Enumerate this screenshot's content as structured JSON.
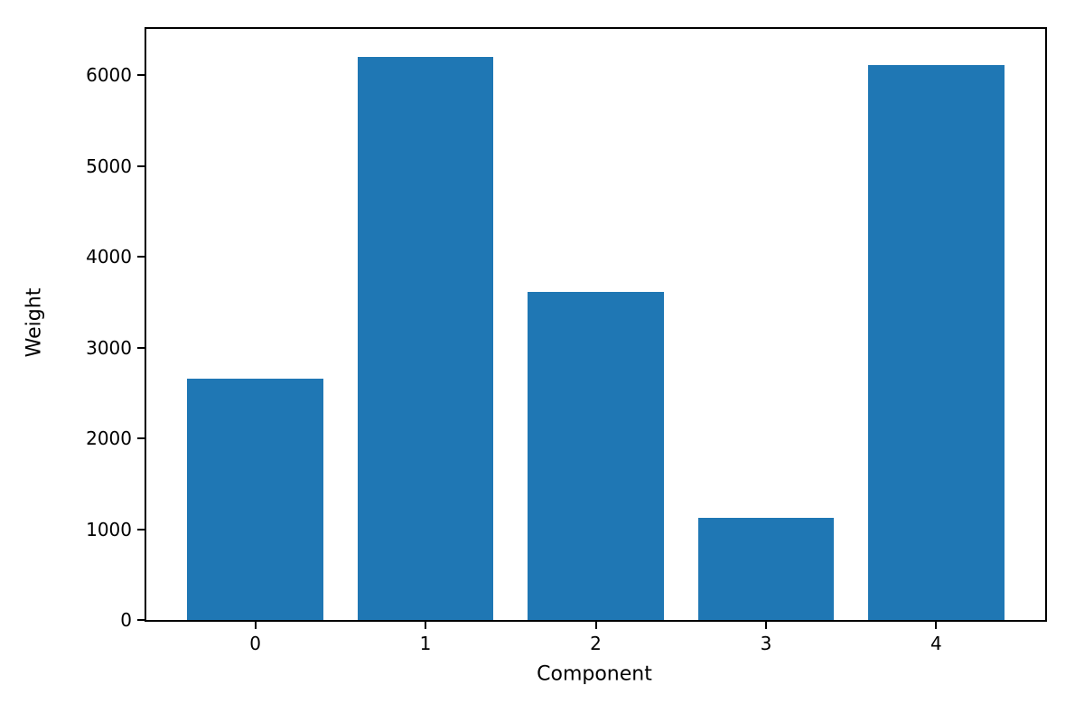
{
  "chart_data": {
    "type": "bar",
    "title": "",
    "xlabel": "Component",
    "ylabel": "Weight",
    "categories": [
      "0",
      "1",
      "2",
      "3",
      "4"
    ],
    "values": [
      2660,
      6200,
      3610,
      1120,
      6110
    ],
    "yticks": [
      0,
      1000,
      2000,
      3000,
      4000,
      5000,
      6000
    ],
    "ylim": [
      0,
      6510
    ],
    "xlim": [
      -0.64,
      4.64
    ],
    "bar_width": 0.8,
    "bar_color": "#1f77b4",
    "grid": false,
    "legend": null
  }
}
